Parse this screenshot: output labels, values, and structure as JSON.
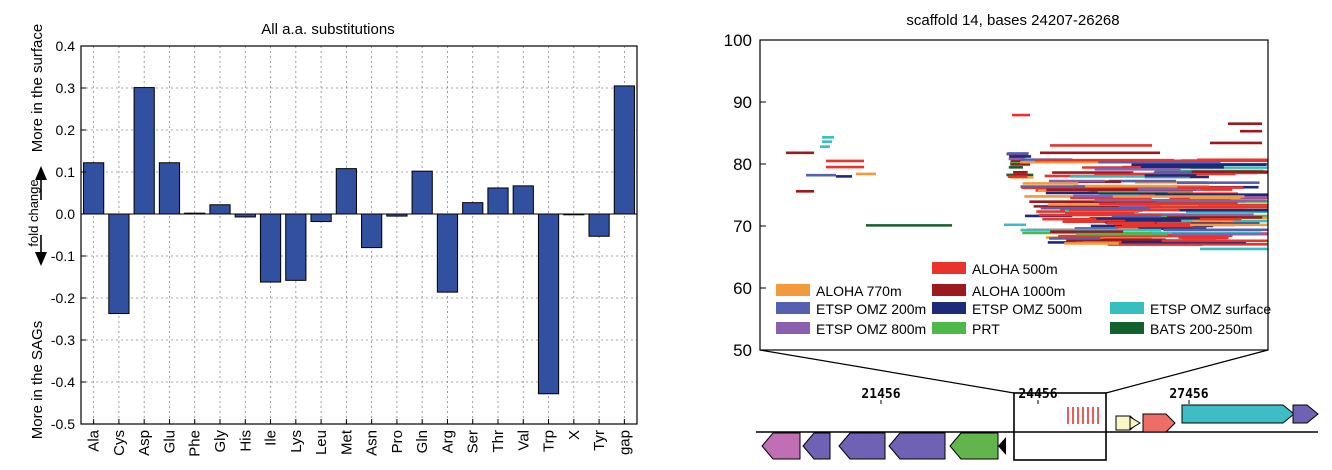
{
  "chart_data": [
    {
      "type": "bar",
      "title": "All a.a. substitutions",
      "ylabel_top": "More in the surface",
      "ylabel_middle": "fold change",
      "ylabel_bottom": "More in the SAGs",
      "categories": [
        "Ala",
        "Cys",
        "Asp",
        "Glu",
        "Phe",
        "Gly",
        "His",
        "Ile",
        "Lys",
        "Leu",
        "Met",
        "Asn",
        "Pro",
        "Gln",
        "Arg",
        "Ser",
        "Thr",
        "Val",
        "Trp",
        "X",
        "Tyr",
        "gap"
      ],
      "values": [
        0.122,
        -0.237,
        0.301,
        0.122,
        0.002,
        0.022,
        -0.007,
        -0.162,
        -0.158,
        -0.018,
        0.108,
        -0.08,
        -0.005,
        0.102,
        -0.186,
        0.027,
        0.062,
        0.067,
        -0.428,
        0.0,
        -0.053,
        0.305
      ],
      "ylim": [
        -0.5,
        0.4
      ],
      "yticks": [
        -0.5,
        -0.4,
        -0.3,
        -0.2,
        -0.1,
        0.0,
        0.1,
        0.2,
        0.3,
        0.4
      ],
      "ytick_labels": [
        "-0.5",
        "-0.4",
        "-0.3",
        "-0.2",
        "-0.1",
        "0.0",
        "0.1",
        "0.2",
        "0.3",
        "0.4"
      ],
      "grid": true,
      "bar_color": "#3250a0"
    },
    {
      "type": "scatter",
      "title": "scaffold 14, bases 24207-26268",
      "ylim": [
        50,
        100
      ],
      "yticks": [
        50,
        60,
        70,
        80,
        90,
        100
      ],
      "ytick_labels": [
        "50",
        "60",
        "70",
        "80",
        "90",
        "100"
      ],
      "legend_position": "bottom",
      "series": [
        {
          "name": "ALOHA 500m",
          "color": "#e8342c"
        },
        {
          "name": "ALOHA 770m",
          "color": "#f39a3c"
        },
        {
          "name": "ALOHA 1000m",
          "color": "#9c1a1e"
        },
        {
          "name": "ETSP OMZ surface",
          "color": "#35bfc0"
        },
        {
          "name": "ETSP OMZ 200m",
          "color": "#5560b0"
        },
        {
          "name": "ETSP OMZ 500m",
          "color": "#1d2a7a"
        },
        {
          "name": "ETSP OMZ 800m",
          "color": "#8a5fae"
        },
        {
          "name": "PRT",
          "color": "#4fb84a"
        },
        {
          "name": "BATS 200-250m",
          "color": "#13602e"
        }
      ]
    }
  ],
  "genome_map": {
    "coordinate_labels": [
      "21456",
      "24456",
      "27456"
    ]
  }
}
